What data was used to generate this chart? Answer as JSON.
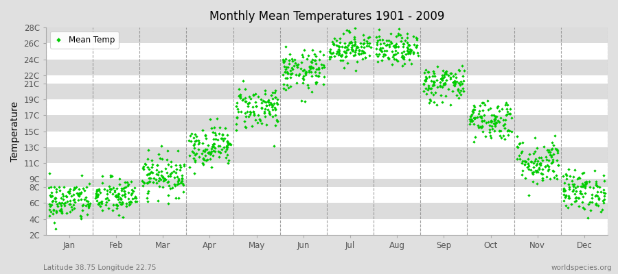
{
  "title": "Monthly Mean Temperatures 1901 - 2009",
  "ylabel": "Temperature",
  "subtitle": "Latitude 38.75 Longitude 22.75",
  "watermark": "worldspecies.org",
  "legend_label": "Mean Temp",
  "dot_color": "#00CC00",
  "bg_color": "#E0E0E0",
  "plot_bg_color": "#EBEBEB",
  "grid_color_light": "#FFFFFF",
  "grid_color_dark": "#DCDCDC",
  "dashed_line_color": "#888888",
  "ytick_labels": [
    "2C",
    "4C",
    "6C",
    "8C",
    "9C",
    "11C",
    "13C",
    "15C",
    "17C",
    "19C",
    "21C",
    "22C",
    "24C",
    "26C",
    "28C"
  ],
  "ytick_values": [
    2,
    4,
    6,
    8,
    9,
    11,
    13,
    15,
    17,
    19,
    21,
    22,
    24,
    26,
    28
  ],
  "ylim": [
    2,
    28
  ],
  "months": [
    "Jan",
    "Feb",
    "Mar",
    "Apr",
    "May",
    "Jun",
    "Jul",
    "Aug",
    "Sep",
    "Oct",
    "Nov",
    "Dec"
  ],
  "n_years": 109,
  "seed": 42,
  "monthly_mean": [
    6.2,
    6.8,
    9.5,
    13.2,
    18.0,
    22.5,
    25.5,
    25.2,
    21.0,
    16.5,
    11.2,
    7.5
  ],
  "monthly_std": [
    1.3,
    1.2,
    1.3,
    1.3,
    1.4,
    1.3,
    1.0,
    1.0,
    1.2,
    1.3,
    1.5,
    1.3
  ]
}
